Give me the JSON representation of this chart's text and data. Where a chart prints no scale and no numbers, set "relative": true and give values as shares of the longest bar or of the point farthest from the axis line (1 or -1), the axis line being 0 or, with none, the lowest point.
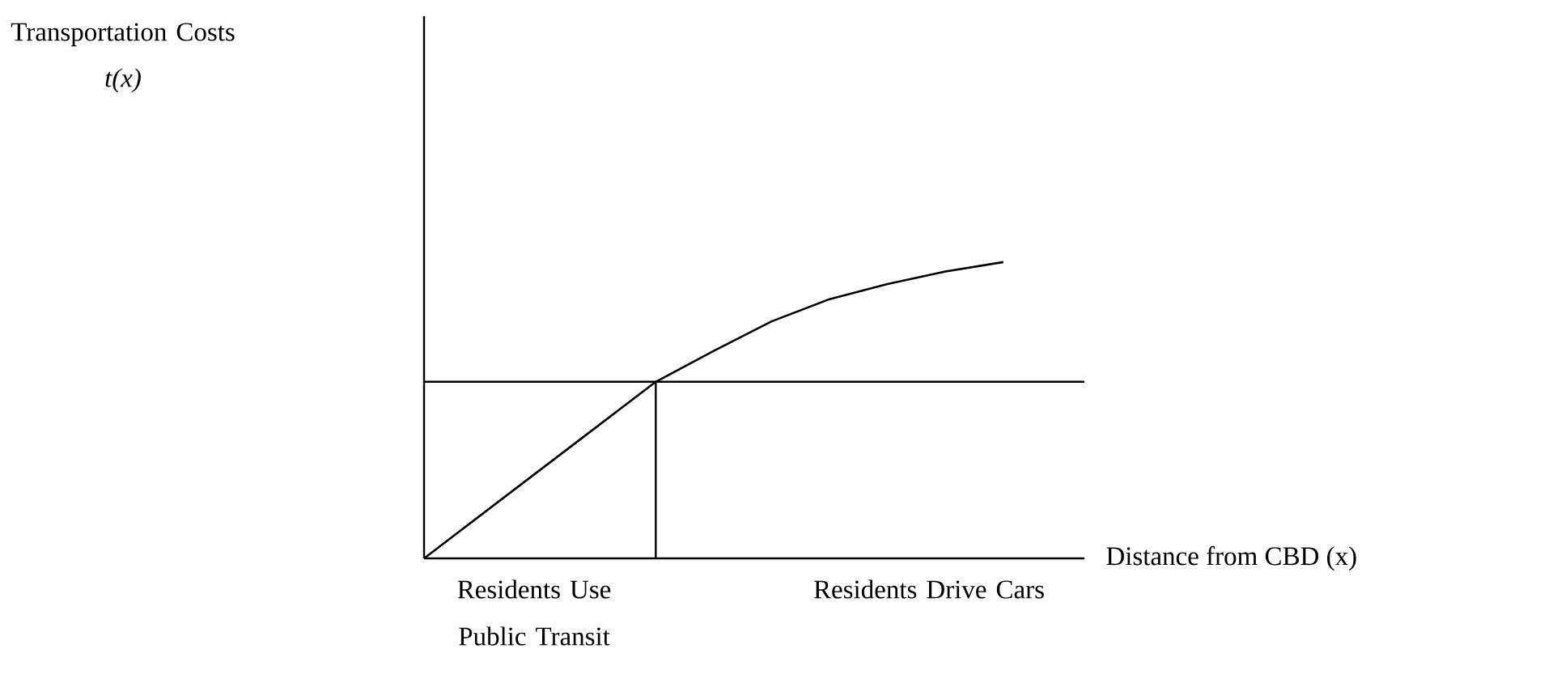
{
  "chart_data": {
    "type": "line",
    "relative": true,
    "xlabel": "Distance from CBD (x)",
    "categories": [
      null,
      null,
      null,
      null,
      null,
      null,
      null,
      null,
      null,
      null,
      null
    ],
    "series": [
      {
        "color": "#000000",
        "values": [
          0,
          0.149,
          0.298,
          0.447,
          0.596,
          0.7,
          0.8,
          0.875,
          0.926,
          0.968,
          1.0
        ]
      }
    ],
    "ref_lines": [
      {
        "axis": "y",
        "value": 0.596
      }
    ],
    "annotations": [
      "Transportation Costs",
      "t(x)",
      "Residents Use Public Transit",
      "Residents Drive Cars"
    ],
    "marker": "none",
    "line_style": "solid"
  }
}
